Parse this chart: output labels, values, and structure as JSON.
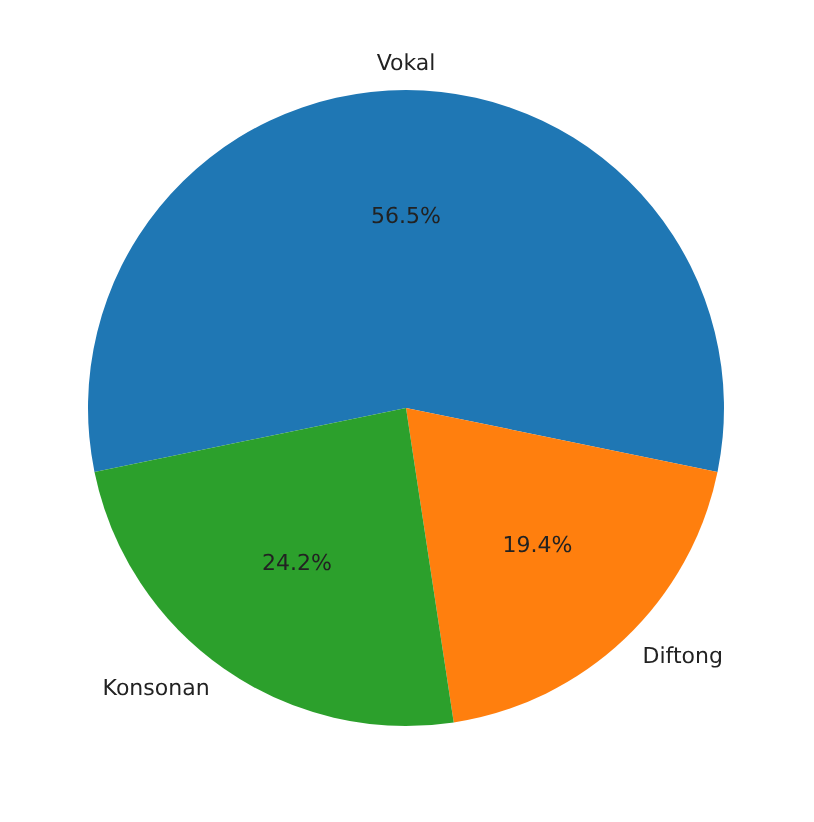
{
  "chart_data": {
    "type": "pie",
    "categories": [
      "Vokal",
      "Diftong",
      "Konsonan"
    ],
    "values": [
      56.5,
      19.4,
      24.2
    ],
    "colors": [
      "#1f77b4",
      "#ff7f0e",
      "#2ca02c"
    ],
    "value_labels": [
      "56.5%",
      "19.4%",
      "24.2%"
    ],
    "legend": false
  }
}
